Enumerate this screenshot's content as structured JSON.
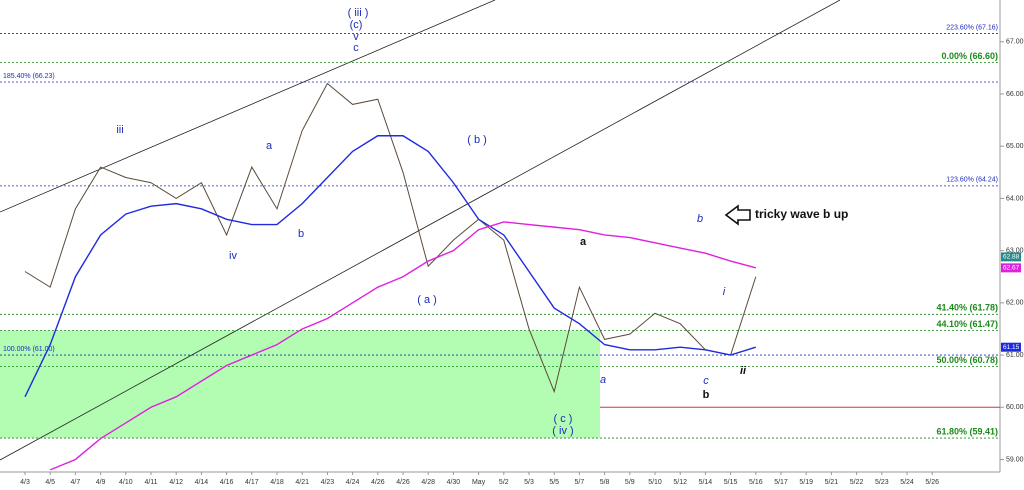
{
  "chart_data": {
    "type": "line",
    "categories": [
      "4/3",
      "4/5",
      "4/7",
      "4/9",
      "4/10",
      "4/11",
      "4/12",
      "4/14",
      "4/16",
      "4/17",
      "4/18",
      "4/21",
      "4/23",
      "4/24",
      "4/26",
      "4/26",
      "4/28",
      "4/30",
      "May",
      "5/2",
      "5/3",
      "5/5",
      "5/7",
      "5/8",
      "5/9",
      "5/10",
      "5/12",
      "5/14",
      "5/15",
      "5/16",
      "5/17",
      "5/19",
      "5/21",
      "5/22",
      "5/23",
      "5/24",
      "5/26"
    ],
    "series": [
      {
        "color": "#5a4a3a",
        "values": [
          62.6,
          62.3,
          63.8,
          64.6,
          64.4,
          64.3,
          64.0,
          64.3,
          63.3,
          64.6,
          63.8,
          65.3,
          66.2,
          65.8,
          65.9,
          64.5,
          62.7,
          63.2,
          63.6,
          63.2,
          61.5,
          60.3,
          62.3,
          61.3,
          61.4,
          61.8,
          61.6,
          61.1,
          61.0,
          62.5,
          null,
          null,
          null,
          null,
          null,
          null,
          null
        ]
      },
      {
        "color": "#1f2bdf",
        "values": [
          60.2,
          61.2,
          62.5,
          63.3,
          63.7,
          63.85,
          63.9,
          63.8,
          63.6,
          63.5,
          63.5,
          63.9,
          64.4,
          64.9,
          65.2,
          65.2,
          64.9,
          64.3,
          63.6,
          63.3,
          62.6,
          61.9,
          61.6,
          61.2,
          61.1,
          61.1,
          61.15,
          61.1,
          61.0,
          61.15,
          null,
          null,
          null,
          null,
          null,
          null,
          null
        ]
      },
      {
        "color": "#e020e0",
        "values": [
          null,
          58.8,
          59.0,
          59.4,
          59.7,
          60.0,
          60.2,
          60.5,
          60.8,
          61.0,
          61.2,
          61.5,
          61.7,
          62.0,
          62.3,
          62.5,
          62.8,
          63.0,
          63.4,
          63.55,
          63.5,
          63.45,
          63.4,
          63.3,
          63.25,
          63.15,
          63.05,
          62.95,
          62.8,
          62.67,
          null,
          null,
          null,
          null,
          null,
          null,
          null
        ]
      }
    ],
    "ylim": [
      58.76,
      67.8
    ],
    "yticks": [
      {
        "value": 59,
        "label": "59.00"
      },
      {
        "value": 60,
        "label": "60.00"
      },
      {
        "value": 61,
        "label": "61.00"
      },
      {
        "value": 62,
        "label": "62.00"
      },
      {
        "value": 63,
        "label": "63.00"
      },
      {
        "value": 64,
        "label": "64.00"
      },
      {
        "value": 65,
        "label": "65.00"
      },
      {
        "value": 66,
        "label": "66.00"
      },
      {
        "value": 67,
        "label": "67.00"
      }
    ],
    "fib_levels_right": [
      {
        "value": 67.16,
        "label": "223.60% (67.16)",
        "color": "#1f2bbf"
      },
      {
        "value": 66.6,
        "label": "0.00% (66.60)",
        "color": "#1a8a1a"
      },
      {
        "value": 64.24,
        "label": "123.60% (64.24)",
        "color": "#1f2bbf"
      },
      {
        "value": 61.78,
        "label": "41.40% (61.78)",
        "color": "#1a8a1a"
      },
      {
        "value": 61.47,
        "label": "44.10% (61.47)",
        "color": "#1a8a1a"
      },
      {
        "value": 60.78,
        "label": "50.00% (60.78)",
        "color": "#1a8a1a"
      },
      {
        "value": 59.41,
        "label": "61.80% (59.41)",
        "color": "#1a8a1a"
      }
    ],
    "fib_levels_left": [
      {
        "value": 66.23,
        "label": "185.40% (66.23)",
        "color": "#1f2bbf"
      },
      {
        "value": 61.0,
        "label": "100.00% (61.00)",
        "color": "#1f2bbf"
      }
    ],
    "support_level": 60.0,
    "price_tags": [
      {
        "value": 62.88,
        "color": "#2a8a8a"
      },
      {
        "value": 62.67,
        "color": "#e020e0"
      },
      {
        "value": 61.15,
        "color": "#1f2bdf"
      }
    ],
    "annotations": [
      "( iii )",
      "(c)",
      "v",
      "c",
      "iii",
      "a",
      "b",
      "iv",
      "( b )",
      "( a )",
      "a",
      "b",
      "tricky wave b up",
      "i",
      "( c )",
      "( iv )",
      "a",
      "c",
      "b",
      "ii"
    ]
  }
}
